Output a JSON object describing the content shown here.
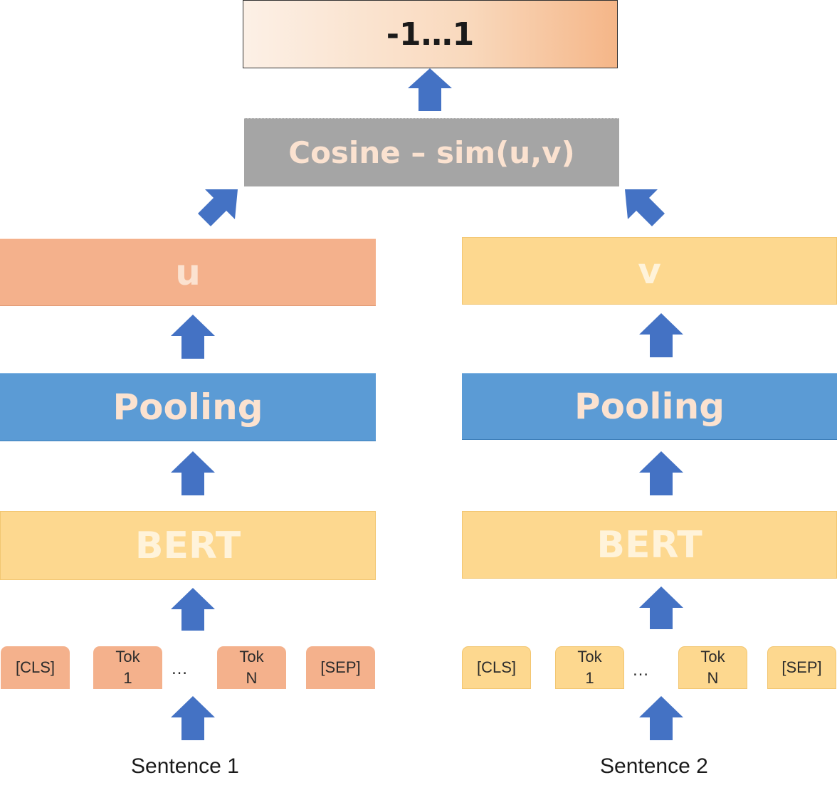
{
  "output": {
    "label": "-1…1"
  },
  "cosine": {
    "label": "Cosine – sim(u,v)"
  },
  "left": {
    "embedding_label": "u",
    "pooling_label": "Pooling",
    "bert_label": "BERT",
    "tokens": [
      {
        "line1": "[CLS]",
        "line2": ""
      },
      {
        "line1": "Tok",
        "line2": "1"
      },
      {
        "line1": "Tok",
        "line2": "N"
      },
      {
        "line1": "[SEP]",
        "line2": ""
      }
    ],
    "ellipsis": "…",
    "sentence_label": "Sentence 1"
  },
  "right": {
    "embedding_label": "v",
    "pooling_label": "Pooling",
    "bert_label": "BERT",
    "tokens": [
      {
        "line1": "[CLS]",
        "line2": ""
      },
      {
        "line1": "Tok",
        "line2": "1"
      },
      {
        "line1": "Tok",
        "line2": "N"
      },
      {
        "line1": "[SEP]",
        "line2": ""
      }
    ],
    "ellipsis": "…",
    "sentence_label": "Sentence 2"
  },
  "colors": {
    "arrow": "#4472c4",
    "u_fill": "#f4b18c",
    "v_fill": "#fdd88f",
    "pooling_fill": "#5b9bd5",
    "bert_fill": "#fdd88f",
    "cosine_fill": "#a5a5a5"
  }
}
